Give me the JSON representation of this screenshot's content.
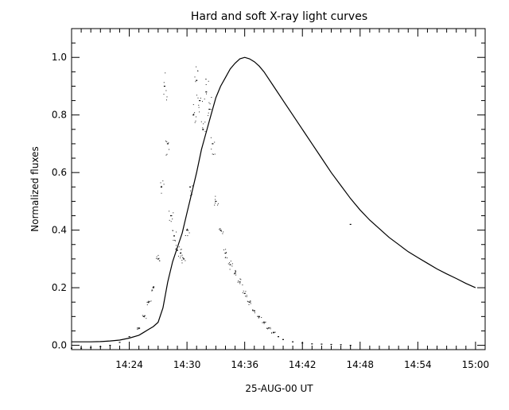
{
  "chart_data": {
    "type": "scatter",
    "title": "Hard and soft X-ray light curves",
    "xlabel": "25-AUG-00  UT",
    "ylabel": "Normalized fluxes",
    "xlim": [
      "14:18",
      "15:01"
    ],
    "ylim": [
      -0.015,
      1.1
    ],
    "x_ticks": [
      "14:24",
      "14:30",
      "14:36",
      "14:42",
      "14:48",
      "14:54",
      "15:00"
    ],
    "y_ticks": [
      "0.0",
      "0.2",
      "0.4",
      "0.6",
      "0.8",
      "1.0"
    ],
    "grid": false,
    "legend": "none",
    "series": [
      {
        "mode": "line",
        "x": [
          "14:18:00",
          "14:19:00",
          "14:20:00",
          "14:21:00",
          "14:22:00",
          "14:23:00",
          "14:24:00",
          "14:25:00",
          "14:25:30",
          "14:26:00",
          "14:26:30",
          "14:27:00",
          "14:27:30",
          "14:28:00",
          "14:28:30",
          "14:29:00",
          "14:29:30",
          "14:30:00",
          "14:30:30",
          "14:31:00",
          "14:31:30",
          "14:32:00",
          "14:32:30",
          "14:33:00",
          "14:33:30",
          "14:34:00",
          "14:34:30",
          "14:35:00",
          "14:35:30",
          "14:36:00",
          "14:36:30",
          "14:37:00",
          "14:37:30",
          "14:38:00",
          "14:39:00",
          "14:40:00",
          "14:41:00",
          "14:42:00",
          "14:43:00",
          "14:44:00",
          "14:45:00",
          "14:46:00",
          "14:47:00",
          "14:48:00",
          "14:49:00",
          "14:50:00",
          "14:51:00",
          "14:52:00",
          "14:53:00",
          "14:54:00",
          "14:55:00",
          "14:56:00",
          "14:57:00",
          "14:58:00",
          "14:59:00",
          "15:00:00"
        ],
        "y": [
          0.012,
          0.012,
          0.012,
          0.013,
          0.015,
          0.018,
          0.025,
          0.035,
          0.045,
          0.055,
          0.065,
          0.08,
          0.13,
          0.22,
          0.29,
          0.34,
          0.39,
          0.46,
          0.53,
          0.6,
          0.68,
          0.74,
          0.8,
          0.86,
          0.9,
          0.93,
          0.96,
          0.98,
          0.995,
          1.0,
          0.995,
          0.985,
          0.97,
          0.95,
          0.9,
          0.85,
          0.8,
          0.75,
          0.7,
          0.65,
          0.6,
          0.555,
          0.51,
          0.47,
          0.435,
          0.405,
          0.375,
          0.35,
          0.325,
          0.305,
          0.285,
          0.265,
          0.248,
          0.232,
          0.215,
          0.2
        ]
      },
      {
        "mode": "points",
        "x": [
          "14:18:00",
          "14:19:00",
          "14:20:00",
          "14:21:00",
          "14:22:00",
          "14:23:00",
          "14:24:00",
          "14:25:00",
          "14:25:30",
          "14:26:00",
          "14:26:30",
          "14:27:00",
          "14:27:20",
          "14:27:40",
          "14:28:00",
          "14:28:20",
          "14:28:40",
          "14:29:00",
          "14:29:20",
          "14:29:40",
          "14:30:00",
          "14:30:20",
          "14:30:40",
          "14:31:00",
          "14:31:20",
          "14:31:40",
          "14:32:00",
          "14:32:20",
          "14:32:40",
          "14:33:00",
          "14:33:30",
          "14:34:00",
          "14:34:30",
          "14:35:00",
          "14:35:30",
          "14:36:00",
          "14:36:30",
          "14:37:00",
          "14:37:30",
          "14:38:00",
          "14:38:30",
          "14:39:00",
          "14:39:30",
          "14:40:00",
          "14:41:00",
          "14:42:00",
          "14:43:00",
          "14:44:00",
          "14:45:00",
          "14:46:00",
          "14:47:00"
        ],
        "y": [
          -0.01,
          -0.01,
          -0.008,
          -0.005,
          0.0,
          0.01,
          0.03,
          0.06,
          0.1,
          0.15,
          0.2,
          0.3,
          0.55,
          0.9,
          0.7,
          0.45,
          0.38,
          0.33,
          0.32,
          0.3,
          0.4,
          0.55,
          0.8,
          0.92,
          0.85,
          0.75,
          0.88,
          0.82,
          0.7,
          0.5,
          0.4,
          0.32,
          0.28,
          0.25,
          0.22,
          0.18,
          0.15,
          0.12,
          0.1,
          0.08,
          0.06,
          0.045,
          0.03,
          0.02,
          0.012,
          0.008,
          0.005,
          0.004,
          0.003,
          0.002,
          0.0
        ]
      },
      {
        "mode": "points",
        "x": [
          "14:47:00"
        ],
        "y": [
          0.42
        ]
      }
    ]
  }
}
